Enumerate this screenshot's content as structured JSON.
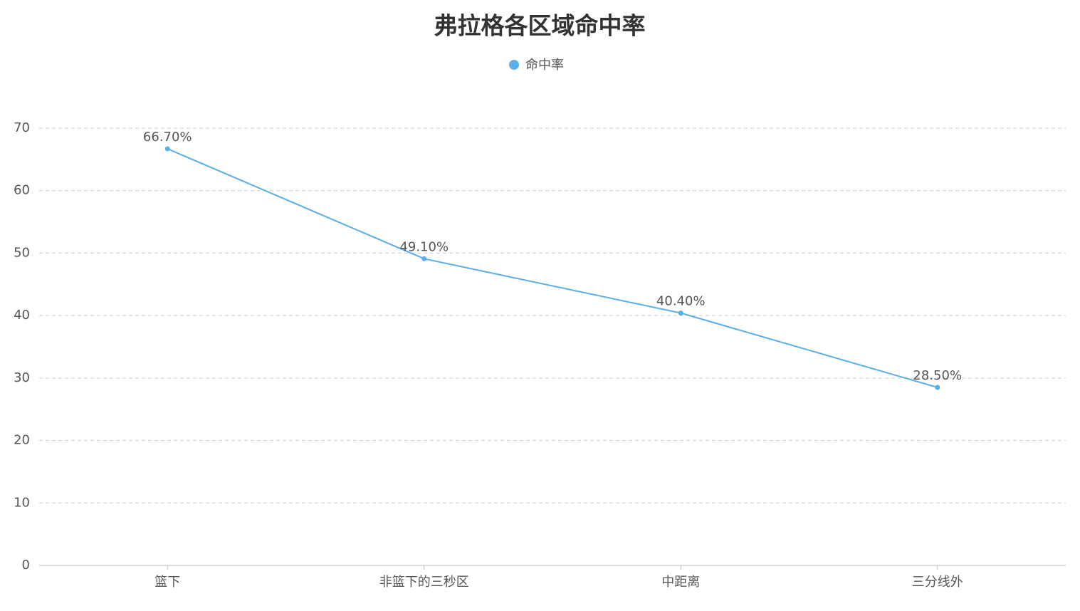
{
  "chart_data": {
    "type": "line",
    "title": "弗拉格各区域命中率",
    "categories": [
      "篮下",
      "非篮下的三秒区",
      "中距离",
      "三分线外"
    ],
    "series": [
      {
        "name": "命中率",
        "color": "#5aaee8",
        "values": [
          66.7,
          49.1,
          40.4,
          28.5
        ],
        "value_labels": [
          "66.70%",
          "49.10%",
          "40.40%",
          "28.50%"
        ]
      }
    ],
    "ylim": [
      0,
      70
    ],
    "yticks": [
      0,
      10,
      20,
      30,
      40,
      50,
      60,
      70
    ],
    "grid": true,
    "legend": "top"
  }
}
